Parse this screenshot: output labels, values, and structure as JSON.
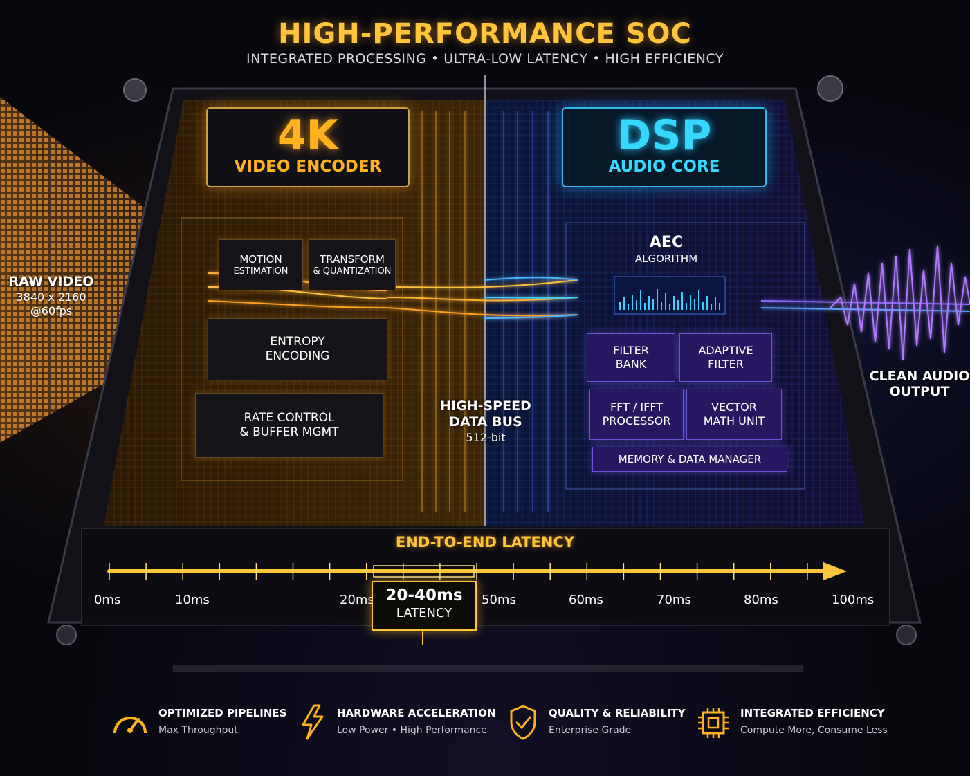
{
  "header": {
    "title": "HIGH-PERFORMANCE SOC",
    "subtitle": "INTEGRATED PROCESSING • ULTRA-LOW LATENCY • HIGH EFFICIENCY"
  },
  "input": {
    "label": "RAW VIDEO",
    "resolution": "3840 x 2160",
    "framerate": "@60fps"
  },
  "video_encoder": {
    "title": "4K",
    "subtitle": "VIDEO ENCODER",
    "blocks": {
      "motion": {
        "line1": "MOTION",
        "line2": "ESTIMATION"
      },
      "transform": {
        "line1": "TRANSFORM",
        "line2": "& QUANTIZATION"
      },
      "entropy": {
        "line1": "ENTROPY",
        "line2": "ENCODING"
      },
      "rate": {
        "line1": "RATE CONTROL",
        "line2": "& BUFFER MGMT"
      }
    }
  },
  "bus": {
    "line1": "HIGH-SPEED",
    "line2": "DATA BUS",
    "width": "512-bit"
  },
  "audio_core": {
    "title": "DSP",
    "subtitle": "AUDIO CORE",
    "blocks": {
      "aec": {
        "line1": "AEC",
        "line2": "ALGORITHM"
      },
      "filter_bank": {
        "line1": "FILTER",
        "line2": "BANK"
      },
      "adaptive": {
        "line1": "ADAPTIVE",
        "line2": "FILTER"
      },
      "fft": {
        "line1": "FFT / IFFT",
        "line2": "PROCESSOR"
      },
      "vector": {
        "line1": "VECTOR",
        "line2": "MATH UNIT"
      },
      "memory": "MEMORY & DATA MANAGER"
    }
  },
  "output": {
    "line1": "CLEAN AUDIO",
    "line2": "OUTPUT"
  },
  "latency": {
    "title": "END-TO-END LATENCY",
    "ticks": {
      "t0": "0ms",
      "t10": "10ms",
      "t20": "20ms",
      "t50": "50ms",
      "t60": "60ms",
      "t70": "70ms",
      "t80": "80ms",
      "t100": "100ms"
    },
    "highlight_value": "20-40ms",
    "highlight_label": "LATENCY",
    "highlight_range_ms": [
      20,
      40
    ],
    "axis_range_ms": [
      0,
      100
    ]
  },
  "features": [
    {
      "icon": "speedometer-icon",
      "title": "OPTIMIZED PIPELINES",
      "subtitle": "Max Throughput"
    },
    {
      "icon": "lightning-icon",
      "title": "HARDWARE ACCELERATION",
      "subtitle": "Low Power • High Performance"
    },
    {
      "icon": "shield-check-icon",
      "title": "QUALITY & RELIABILITY",
      "subtitle": "Enterprise Grade"
    },
    {
      "icon": "chip-icon",
      "title": "INTEGRATED EFFICIENCY",
      "subtitle": "Compute More, Consume Less"
    }
  ],
  "colors": {
    "accent_gold": "#ffc53a",
    "video_orange": "#ffa51e",
    "audio_cyan": "#36d8ff",
    "audio_purple": "#7a5cff",
    "background": "#07070e"
  }
}
